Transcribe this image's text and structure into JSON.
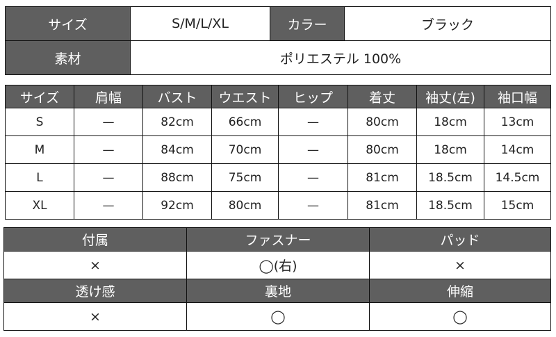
{
  "summary": {
    "size_label": "サイズ",
    "size_value": "S/M/L/XL",
    "color_label": "カラー",
    "color_value": "ブラック",
    "material_label": "素材",
    "material_value": "ポリエステル 100%"
  },
  "sizes": {
    "headers": [
      "サイズ",
      "肩幅",
      "バスト",
      "ウエスト",
      "ヒップ",
      "着丈",
      "袖丈(左)",
      "袖口幅"
    ],
    "rows": [
      [
        "S",
        "—",
        "82cm",
        "66cm",
        "—",
        "80cm",
        "18cm",
        "13cm"
      ],
      [
        "M",
        "—",
        "84cm",
        "70cm",
        "—",
        "80cm",
        "18cm",
        "14cm"
      ],
      [
        "L",
        "—",
        "88cm",
        "75cm",
        "—",
        "81cm",
        "18.5cm",
        "14.5cm"
      ],
      [
        "XL",
        "—",
        "92cm",
        "80cm",
        "—",
        "81cm",
        "18.5cm",
        "15cm"
      ]
    ]
  },
  "features": {
    "row1_headers": [
      "付属",
      "ファスナー",
      "パッド"
    ],
    "row1_values": [
      "×",
      "◯(右)",
      "×"
    ],
    "row2_headers": [
      "透け感",
      "裏地",
      "伸縮"
    ],
    "row2_values": [
      "×",
      "◯",
      "◯"
    ]
  },
  "colors": {
    "header_bg": "#5f5f5f",
    "header_text": "#ffffff",
    "border": "#111111"
  }
}
